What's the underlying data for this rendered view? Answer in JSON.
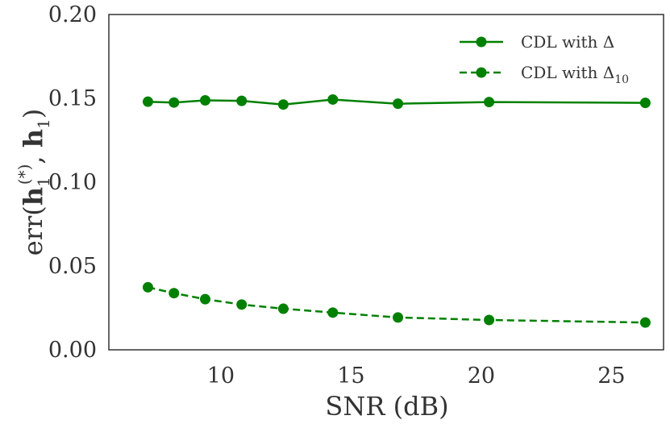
{
  "chart_data": {
    "type": "line",
    "xlabel": "SNR (dB)",
    "ylabel": "err(h1(*), h1)",
    "ylabel_parts": {
      "pre": "err(",
      "h": "h",
      "sub": "1",
      "sup": "(*)",
      "comma": ", ",
      "h2": "h",
      "sub2": "1",
      "post": ")"
    },
    "xlim": [
      5.7,
      27.0
    ],
    "ylim": [
      0.0,
      0.2
    ],
    "xticks": [
      10,
      15,
      20,
      25
    ],
    "xtick_labels": [
      "10",
      "15",
      "20",
      "25"
    ],
    "yticks": [
      0.0,
      0.05,
      0.1,
      0.15,
      0.2
    ],
    "ytick_labels": [
      "0.00",
      "0.05",
      "0.10",
      "0.15",
      "0.20"
    ],
    "grid": false,
    "legend_position": "top-right",
    "series": [
      {
        "name": "CDL with Δ",
        "name_parts": {
          "base": "CDL with Δ",
          "sub": ""
        },
        "style": "solid",
        "color": "#008000",
        "x": [
          7.2,
          8.2,
          9.4,
          10.8,
          12.4,
          14.3,
          16.8,
          20.3,
          26.3
        ],
        "y": [
          0.148,
          0.1475,
          0.1488,
          0.1485,
          0.1463,
          0.1493,
          0.1468,
          0.1478,
          0.1473
        ]
      },
      {
        "name": "CDL with Δ10",
        "name_parts": {
          "base": "CDL with Δ",
          "sub": "10"
        },
        "style": "dashed",
        "color": "#008000",
        "x": [
          7.2,
          8.2,
          9.4,
          10.8,
          12.4,
          14.3,
          16.8,
          20.3,
          26.3
        ],
        "y": [
          0.0373,
          0.0338,
          0.0302,
          0.027,
          0.0245,
          0.0222,
          0.0193,
          0.0178,
          0.0163
        ]
      }
    ]
  }
}
